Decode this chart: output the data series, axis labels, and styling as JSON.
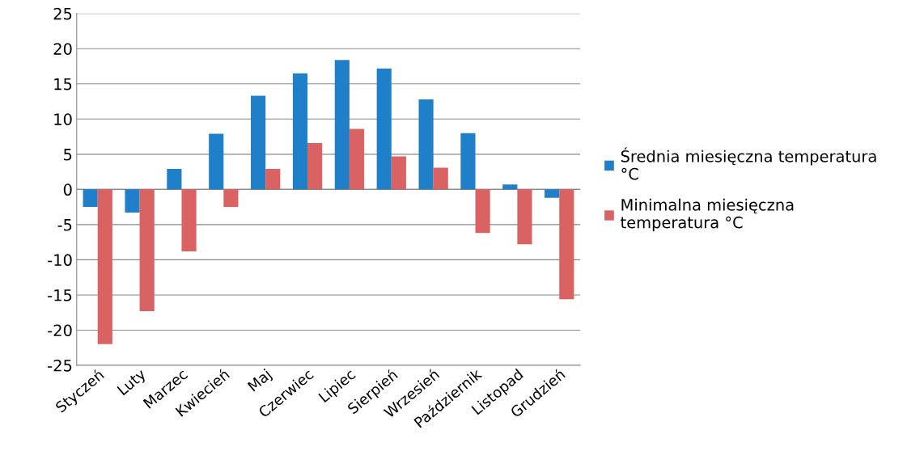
{
  "chart_data": {
    "type": "bar",
    "categories": [
      "Styczeń",
      "Luty",
      "Marzec",
      "Kwiecień",
      "Maj",
      "Czerwiec",
      "Lipiec",
      "Sierpień",
      "Wrzesień",
      "Październik",
      "Listopad",
      "Grudzień"
    ],
    "series": [
      {
        "name": "Średnia miesięczna temperatura\n°C",
        "color": "#1f7fc8",
        "values": [
          -2.5,
          -3.3,
          2.9,
          7.9,
          13.3,
          16.5,
          18.4,
          17.2,
          12.8,
          8.0,
          0.7,
          -1.2
        ]
      },
      {
        "name": "Minimalna miesięczna\ntemperatura °C",
        "color": "#d96262",
        "values": [
          -22.0,
          -17.3,
          -8.8,
          -2.5,
          2.9,
          6.6,
          8.6,
          4.7,
          3.1,
          -6.2,
          -7.8,
          -15.6
        ]
      }
    ],
    "ylim": [
      -25,
      25
    ],
    "yticks": [
      -25,
      -20,
      -15,
      -10,
      -5,
      0,
      5,
      10,
      15,
      20,
      25
    ],
    "grid": "y",
    "legend": "right"
  }
}
